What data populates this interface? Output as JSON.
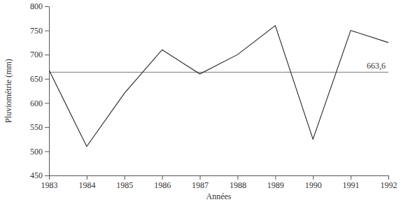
{
  "chart_data": {
    "type": "line",
    "x_label": "Années",
    "y_label": "Pluviométrie (mm)",
    "x": [
      1983,
      1984,
      1985,
      1986,
      1987,
      1988,
      1989,
      1990,
      1991,
      1992
    ],
    "values": [
      668,
      510,
      620,
      710,
      660,
      700,
      760,
      525,
      750,
      725
    ],
    "color": "#222222",
    "xlim": [
      1983,
      1992
    ],
    "xticks": [
      1983,
      1984,
      1985,
      1986,
      1987,
      1988,
      1989,
      1990,
      1991,
      1992
    ],
    "ylim": [
      450,
      800
    ],
    "yticks": [
      450,
      500,
      550,
      600,
      650,
      700,
      750,
      800
    ],
    "grid": false,
    "annotations": [
      {
        "text": "663,6",
        "y": 663.6
      }
    ]
  }
}
